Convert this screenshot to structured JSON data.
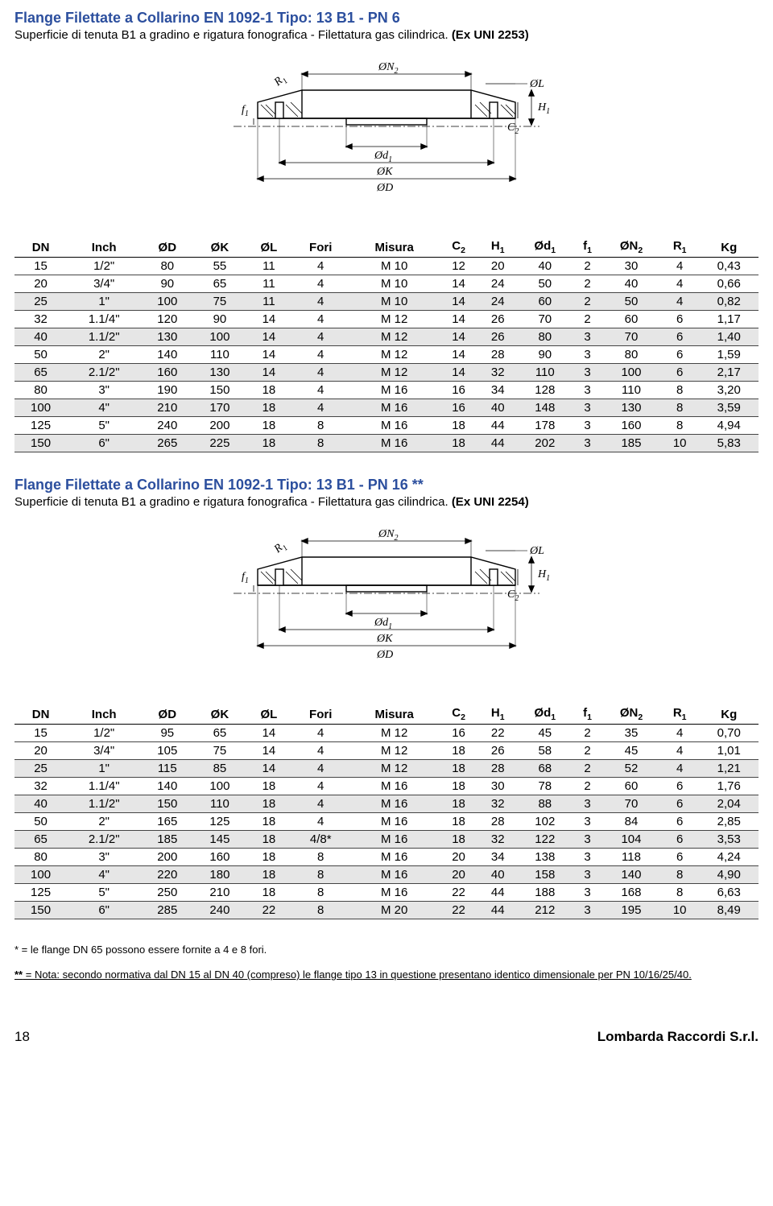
{
  "section1": {
    "title": "Flange Filettate a Collarino EN 1092-1 Tipo: 13 B1 - PN 6",
    "subtitle_pre": "Superficie di tenuta B1 a gradino e rigatura fonografica - Filettatura gas cilindrica. ",
    "subtitle_ex": "(Ex UNI 2253)",
    "columns": [
      "DN",
      "Inch",
      "ØD",
      "ØK",
      "ØL",
      "Fori",
      "Misura",
      "C₂",
      "H₁",
      "Ød₁",
      "f₁",
      "ØN₂",
      "R₁",
      "Kg"
    ],
    "rows": [
      [
        "15",
        "1/2\"",
        "80",
        "55",
        "11",
        "4",
        "M 10",
        "12",
        "20",
        "40",
        "2",
        "30",
        "4",
        "0,43"
      ],
      [
        "20",
        "3/4\"",
        "90",
        "65",
        "11",
        "4",
        "M 10",
        "14",
        "24",
        "50",
        "2",
        "40",
        "4",
        "0,66"
      ],
      [
        "25",
        "1\"",
        "100",
        "75",
        "11",
        "4",
        "M 10",
        "14",
        "24",
        "60",
        "2",
        "50",
        "4",
        "0,82"
      ],
      [
        "32",
        "1.1/4\"",
        "120",
        "90",
        "14",
        "4",
        "M 12",
        "14",
        "26",
        "70",
        "2",
        "60",
        "6",
        "1,17"
      ],
      [
        "40",
        "1.1/2\"",
        "130",
        "100",
        "14",
        "4",
        "M 12",
        "14",
        "26",
        "80",
        "3",
        "70",
        "6",
        "1,40"
      ],
      [
        "50",
        "2\"",
        "140",
        "110",
        "14",
        "4",
        "M 12",
        "14",
        "28",
        "90",
        "3",
        "80",
        "6",
        "1,59"
      ],
      [
        "65",
        "2.1/2\"",
        "160",
        "130",
        "14",
        "4",
        "M 12",
        "14",
        "32",
        "110",
        "3",
        "100",
        "6",
        "2,17"
      ],
      [
        "80",
        "3\"",
        "190",
        "150",
        "18",
        "4",
        "M 16",
        "16",
        "34",
        "128",
        "3",
        "110",
        "8",
        "3,20"
      ],
      [
        "100",
        "4\"",
        "210",
        "170",
        "18",
        "4",
        "M 16",
        "16",
        "40",
        "148",
        "3",
        "130",
        "8",
        "3,59"
      ],
      [
        "125",
        "5\"",
        "240",
        "200",
        "18",
        "8",
        "M 16",
        "18",
        "44",
        "178",
        "3",
        "160",
        "8",
        "4,94"
      ],
      [
        "150",
        "6\"",
        "265",
        "225",
        "18",
        "8",
        "M 16",
        "18",
        "44",
        "202",
        "3",
        "185",
        "10",
        "5,83"
      ]
    ],
    "shaded": [
      2,
      4,
      6,
      8,
      10
    ]
  },
  "section2": {
    "title": "Flange Filettate a Collarino EN 1092-1 Tipo: 13 B1 - PN 16 **",
    "subtitle_pre": "Superficie di tenuta B1 a gradino e rigatura fonografica - Filettatura gas cilindrica. ",
    "subtitle_ex": "(Ex UNI 2254)",
    "columns": [
      "DN",
      "Inch",
      "ØD",
      "ØK",
      "ØL",
      "Fori",
      "Misura",
      "C₂",
      "H₁",
      "Ød₁",
      "f₁",
      "ØN₂",
      "R₁",
      "Kg"
    ],
    "rows": [
      [
        "15",
        "1/2\"",
        "95",
        "65",
        "14",
        "4",
        "M 12",
        "16",
        "22",
        "45",
        "2",
        "35",
        "4",
        "0,70"
      ],
      [
        "20",
        "3/4\"",
        "105",
        "75",
        "14",
        "4",
        "M 12",
        "18",
        "26",
        "58",
        "2",
        "45",
        "4",
        "1,01"
      ],
      [
        "25",
        "1\"",
        "115",
        "85",
        "14",
        "4",
        "M 12",
        "18",
        "28",
        "68",
        "2",
        "52",
        "4",
        "1,21"
      ],
      [
        "32",
        "1.1/4\"",
        "140",
        "100",
        "18",
        "4",
        "M 16",
        "18",
        "30",
        "78",
        "2",
        "60",
        "6",
        "1,76"
      ],
      [
        "40",
        "1.1/2\"",
        "150",
        "110",
        "18",
        "4",
        "M 16",
        "18",
        "32",
        "88",
        "3",
        "70",
        "6",
        "2,04"
      ],
      [
        "50",
        "2\"",
        "165",
        "125",
        "18",
        "4",
        "M 16",
        "18",
        "28",
        "102",
        "3",
        "84",
        "6",
        "2,85"
      ],
      [
        "65",
        "2.1/2\"",
        "185",
        "145",
        "18",
        "4/8*",
        "M 16",
        "18",
        "32",
        "122",
        "3",
        "104",
        "6",
        "3,53"
      ],
      [
        "80",
        "3\"",
        "200",
        "160",
        "18",
        "8",
        "M 16",
        "20",
        "34",
        "138",
        "3",
        "118",
        "6",
        "4,24"
      ],
      [
        "100",
        "4\"",
        "220",
        "180",
        "18",
        "8",
        "M 16",
        "20",
        "40",
        "158",
        "3",
        "140",
        "8",
        "4,90"
      ],
      [
        "125",
        "5\"",
        "250",
        "210",
        "18",
        "8",
        "M 16",
        "22",
        "44",
        "188",
        "3",
        "168",
        "8",
        "6,63"
      ],
      [
        "150",
        "6\"",
        "285",
        "240",
        "22",
        "8",
        "M 20",
        "22",
        "44",
        "212",
        "3",
        "195",
        "10",
        "8,49"
      ]
    ],
    "shaded": [
      2,
      4,
      6,
      8,
      10
    ],
    "footnote": "* = le flange DN 65 possono essere fornite a 4 e 8 fori.",
    "footnote2_lead": "**",
    "footnote2_text": " = Nota: secondo normativa dal DN 15 al DN 40 (compreso) le flange tipo 13 in questione presentano identico dimensionale per PN 10/16/25/40."
  },
  "diagram_labels": {
    "on2": "ØN₂",
    "ol": "ØL",
    "r1": "R₁",
    "f1": "f₁",
    "c2": "C₂",
    "h1": "H₁",
    "od1": "Ød₁",
    "ok": "ØK",
    "od": "ØD"
  },
  "footer": {
    "page": "18",
    "company": "Lombarda Raccordi S.r.l."
  },
  "colors": {
    "title": "#2c4f9e",
    "shade": "#e6e6e6",
    "text": "#000000",
    "bg": "#ffffff"
  }
}
